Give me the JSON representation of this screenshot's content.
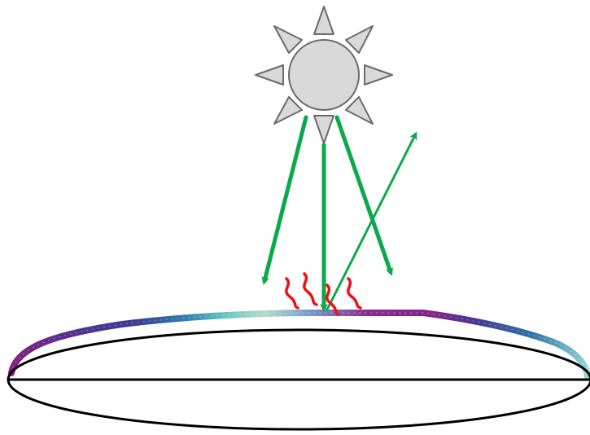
{
  "colors": {
    "background": "#ffffff",
    "sun_fill": "#d9d9d9",
    "sun_stroke": "#6b6b6b",
    "arrow": "#0aaa4a",
    "heat_waves": "#ee1111",
    "planet_outline": "#000000",
    "atmosphere_gradient": [
      "#7b1e7a",
      "#4a3590",
      "#2e86b0",
      "#5fc6c6",
      "#b4dcc8",
      "#7a9ad0",
      "#8a2a88"
    ]
  },
  "icons": {
    "sun": "sun-icon",
    "heat": "heat-wave-icon",
    "arrow": "arrow-icon"
  },
  "diagram": {
    "elements": [
      "sun",
      "incoming-radiation-arrows",
      "reflected-radiation-arrow",
      "heat-waves",
      "atmosphere-layer",
      "planet-surface"
    ]
  }
}
